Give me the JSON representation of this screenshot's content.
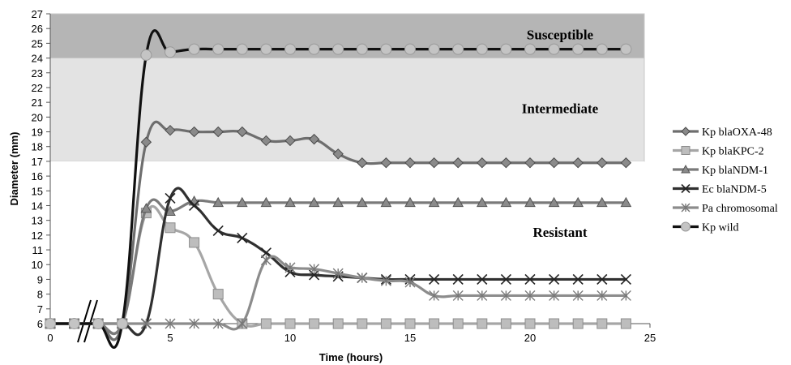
{
  "chart_data": {
    "type": "line",
    "xlabel": "Time (hours)",
    "ylabel": "Diameter (mm)",
    "xlim": [
      0,
      25
    ],
    "ylim": [
      6,
      27
    ],
    "x_ticks": [
      0,
      5,
      10,
      15,
      20,
      25
    ],
    "y_ticks": [
      6,
      7,
      8,
      9,
      10,
      11,
      12,
      13,
      14,
      15,
      16,
      17,
      18,
      19,
      20,
      21,
      22,
      23,
      24,
      25,
      26,
      27
    ],
    "axis_break": "//",
    "grid": false,
    "legend_position": "right",
    "zones": [
      {
        "label": "Susceptible",
        "y_from": 24,
        "y_to": 27,
        "color": "#b5b5b5"
      },
      {
        "label": "Intermediate",
        "y_from": 17,
        "y_to": 24,
        "color": "#e3e3e3"
      },
      {
        "label": "Resistant",
        "y_from": 6,
        "y_to": 17,
        "color": "#ffffff"
      }
    ],
    "series": [
      {
        "name": "Kp blaOXA-48",
        "marker": "diamond",
        "color": "#6e6e6e",
        "x": [
          0,
          1,
          2,
          3,
          4,
          5,
          6,
          7,
          8,
          9,
          10,
          11,
          12,
          13,
          14,
          15,
          16,
          17,
          18,
          19,
          20,
          21,
          22,
          23,
          24
        ],
        "y": [
          6,
          6,
          6,
          6,
          18.3,
          19.1,
          19,
          19,
          19,
          18.4,
          18.4,
          18.5,
          17.5,
          16.9,
          16.9,
          16.9,
          16.9,
          16.9,
          16.9,
          16.9,
          16.9,
          16.9,
          16.9,
          16.9,
          16.9
        ]
      },
      {
        "name": "Kp blaKPC-2",
        "marker": "square",
        "color": "#a6a6a6",
        "x": [
          0,
          1,
          2,
          3,
          4,
          5,
          6,
          7,
          8,
          9,
          10,
          11,
          12,
          13,
          14,
          15,
          16,
          17,
          18,
          19,
          20,
          21,
          22,
          23,
          24
        ],
        "y": [
          6,
          6,
          6,
          6,
          13.5,
          12.5,
          11.5,
          8,
          6,
          6,
          6,
          6,
          6,
          6,
          6,
          6,
          6,
          6,
          6,
          6,
          6,
          6,
          6,
          6,
          6
        ]
      },
      {
        "name": "Kp blaNDM-1",
        "marker": "triangle",
        "color": "#7a7a7a",
        "x": [
          0,
          1,
          2,
          3,
          4,
          5,
          6,
          7,
          8,
          9,
          10,
          11,
          12,
          13,
          14,
          15,
          16,
          17,
          18,
          19,
          20,
          21,
          22,
          23,
          24
        ],
        "y": [
          6,
          6,
          6,
          6,
          13.8,
          13.6,
          14.3,
          14.2,
          14.2,
          14.2,
          14.2,
          14.2,
          14.2,
          14.2,
          14.2,
          14.2,
          14.2,
          14.2,
          14.2,
          14.2,
          14.2,
          14.2,
          14.2,
          14.2,
          14.2
        ]
      },
      {
        "name": "Ec blaNDM-5",
        "marker": "x",
        "color": "#303030",
        "x": [
          0,
          1,
          2,
          3,
          4,
          5,
          6,
          7,
          8,
          9,
          10,
          11,
          12,
          13,
          14,
          15,
          16,
          17,
          18,
          19,
          20,
          21,
          22,
          23,
          24
        ],
        "y": [
          6,
          6,
          6,
          6,
          6,
          14.5,
          14,
          12.3,
          11.8,
          10.8,
          9.5,
          9.3,
          9.2,
          9.1,
          9,
          9,
          9,
          9,
          9,
          9,
          9,
          9,
          9,
          9,
          9
        ]
      },
      {
        "name": "Pa chromosomal",
        "marker": "star",
        "color": "#8c8c8c",
        "x": [
          0,
          1,
          2,
          3,
          4,
          5,
          6,
          7,
          8,
          9,
          10,
          11,
          12,
          13,
          14,
          15,
          16,
          17,
          18,
          19,
          20,
          21,
          22,
          23,
          24
        ],
        "y": [
          6,
          6,
          6,
          6,
          6,
          6,
          6,
          6,
          6,
          10.3,
          9.8,
          9.7,
          9.4,
          9.1,
          8.9,
          8.8,
          7.9,
          7.9,
          7.9,
          7.9,
          7.9,
          7.9,
          7.9,
          7.9,
          7.9
        ]
      },
      {
        "name": "Kp wild",
        "marker": "circle",
        "color": "#111111",
        "x": [
          0,
          1,
          2,
          3,
          4,
          5,
          6,
          7,
          8,
          9,
          10,
          11,
          12,
          13,
          14,
          15,
          16,
          17,
          18,
          19,
          20,
          21,
          22,
          23,
          24
        ],
        "y": [
          6,
          6,
          6,
          6,
          24.2,
          24.4,
          24.6,
          24.6,
          24.6,
          24.6,
          24.6,
          24.6,
          24.6,
          24.6,
          24.6,
          24.6,
          24.6,
          24.6,
          24.6,
          24.6,
          24.6,
          24.6,
          24.6,
          24.6,
          24.6
        ]
      }
    ]
  }
}
